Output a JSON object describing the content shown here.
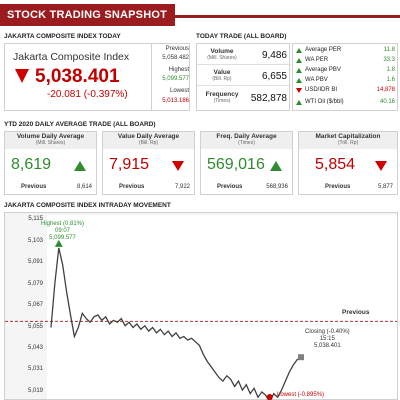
{
  "header": {
    "title": "STOCK TRADING SNAPSHOT"
  },
  "jci_today": {
    "section_label": "JAKARTA COMPOSITE INDEX TODAY",
    "index_name": "Jakarta Composite Index",
    "value": "5,038.401",
    "change": "-20.081 (-0.397%)",
    "direction": "down",
    "stats": [
      {
        "label": "Previous",
        "value": "5,058.482",
        "color": "#333333"
      },
      {
        "label": "Highest",
        "value": "5,099.577",
        "color": "#2e8b2e"
      },
      {
        "label": "Lowest",
        "value": "5,013.186",
        "color": "#c00000"
      }
    ]
  },
  "today_trade": {
    "section_label": "TODAY TRADE (ALL BOARD)",
    "rows": [
      {
        "label": "Volume",
        "sub": "(Mill. Shares)",
        "value": "9,486"
      },
      {
        "label": "Value",
        "sub": "(Bill. Rp)",
        "value": "6,655"
      },
      {
        "label": "Frequency",
        "sub": "(Times)",
        "value": "582,878"
      }
    ]
  },
  "indicators": [
    {
      "name": "Average PER",
      "value": "11.8",
      "direction": "up",
      "color": "#2e8b2e"
    },
    {
      "name": "WA PER",
      "value": "33.3",
      "direction": "up",
      "color": "#2e8b2e"
    },
    {
      "name": "Average PBV",
      "value": "1.8",
      "direction": "up",
      "color": "#2e8b2e"
    },
    {
      "name": "WA PBV",
      "value": "1.6",
      "direction": "up",
      "color": "#2e8b2e"
    },
    {
      "name": "USD/IDR BI",
      "value": "14,878",
      "direction": "down",
      "color": "#d00000"
    },
    {
      "name": "WTI Oil ($/bbl)",
      "value": "40.16",
      "direction": "up",
      "color": "#2e8b2e"
    }
  ],
  "ytd": {
    "section_label": "YTD 2020 DAILY AVERAGE TRADE (ALL BOARD)",
    "cards": [
      {
        "title": "Volume Daily Average",
        "sub": "(Mill. Shares)",
        "value": "8,619",
        "direction": "up",
        "color": "#2e8b2e",
        "prev_label": "Previous",
        "prev_value": "8,614"
      },
      {
        "title": "Value Daily Average",
        "sub": "(Bill. Rp)",
        "value": "7,915",
        "direction": "down",
        "color": "#c00000",
        "prev_label": "Previous",
        "prev_value": "7,922"
      },
      {
        "title": "Freq. Daily Average",
        "sub": "(Times)",
        "value": "569,016",
        "direction": "up",
        "color": "#2e8b2e",
        "prev_label": "Previous",
        "prev_value": "568,936"
      },
      {
        "title": "Market Capitalization",
        "sub": "(Trill. Rp)",
        "value": "5,854",
        "direction": "down",
        "color": "#c00000",
        "prev_label": "Previous",
        "prev_value": "5,877"
      }
    ]
  },
  "intraday": {
    "section_label": "JAKARTA COMPOSITE INDEX INTRADAY MOVEMENT",
    "previous_label": "Previous",
    "highest_annotation": {
      "line1": "Highest (0.81%)",
      "line2": "09:07",
      "line3": "5,099.577"
    },
    "closing_annotation": {
      "line1": "Closing (-0.40%)",
      "line2": "15:15",
      "line3": "5,038.401"
    },
    "lowest_annotation": {
      "line1": "Lowest (-0.895%)"
    }
  },
  "chart_data": {
    "type": "line",
    "title": "JAKARTA COMPOSITE INDEX INTRADAY MOVEMENT",
    "y_ticks": [
      "5,115",
      "5,103",
      "5,091",
      "5,079",
      "5,067",
      "5,055",
      "5,043",
      "5,031",
      "5,019"
    ],
    "ylim": [
      5015,
      5118
    ],
    "previous_close": 5058.482,
    "highest": {
      "time": "09:07",
      "value": 5099.577
    },
    "lowest": {
      "value": 5013.186
    },
    "closing": {
      "time": "15:15",
      "value": 5038.401
    },
    "series": [
      {
        "values": [
          5055,
          5080,
          5099.6,
          5090,
          5075,
          5062,
          5050,
          5055,
          5063,
          5060,
          5058,
          5061,
          5062,
          5059,
          5061,
          5057,
          5059,
          5058,
          5060,
          5056,
          5058,
          5055,
          5057,
          5054,
          5056,
          5053,
          5055,
          5052,
          5054,
          5051,
          5053,
          5050,
          5052,
          5049,
          5050,
          5048,
          5049,
          5047,
          5045,
          5040,
          5036,
          5033,
          5030,
          5027,
          5025,
          5028,
          5026,
          5022,
          5025,
          5020,
          5023,
          5018,
          5021,
          5016,
          5019,
          5017,
          5013.2,
          5018,
          5016,
          5020,
          5025,
          5030,
          5034,
          5037,
          5038.4
        ]
      }
    ]
  }
}
